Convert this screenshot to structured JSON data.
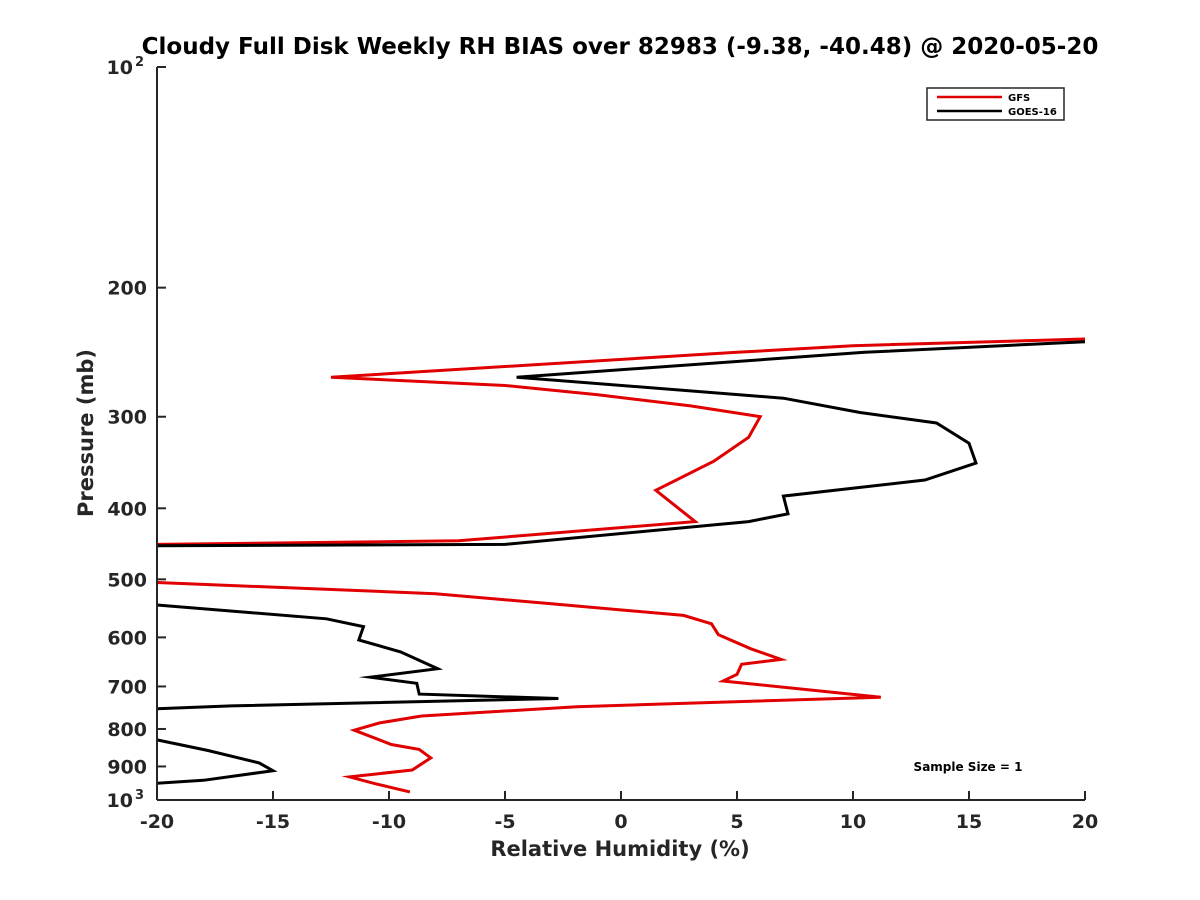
{
  "chart_data": {
    "type": "line",
    "title": "Cloudy Full Disk Weekly RH BIAS over 82983 (-9.38, -40.48) @ 2020-05-20",
    "xlabel": "Relative Humidity (%)",
    "ylabel": "Pressure (mb)",
    "xlim": [
      -20,
      20
    ],
    "ylim": [
      100,
      1000
    ],
    "yscale": "log",
    "y_reversed": true,
    "grid": false,
    "legend_position": "top-right",
    "x_ticks": [
      -20,
      -15,
      -10,
      -5,
      0,
      5,
      10,
      15,
      20
    ],
    "x_tick_labels": [
      "-20",
      "-15",
      "-10",
      "-5",
      "0",
      "5",
      "10",
      "15",
      "20"
    ],
    "y_ticks": [
      100,
      200,
      300,
      400,
      500,
      600,
      700,
      800,
      900,
      1000
    ],
    "y_tick_labels": [
      {
        "base": "10",
        "sup": "2"
      },
      {
        "base": "200",
        "sup": ""
      },
      {
        "base": "300",
        "sup": ""
      },
      {
        "base": "400",
        "sup": ""
      },
      {
        "base": "500",
        "sup": ""
      },
      {
        "base": "600",
        "sup": ""
      },
      {
        "base": "700",
        "sup": ""
      },
      {
        "base": "800",
        "sup": ""
      },
      {
        "base": "900",
        "sup": ""
      },
      {
        "base": "10",
        "sup": "3"
      }
    ],
    "series": [
      {
        "name": "GFS",
        "color": "#e00000",
        "segments": [
          [
            [
              20,
              235
            ],
            [
              10,
              240
            ],
            [
              5,
              245
            ],
            [
              -12.5,
              265
            ],
            [
              -5,
              272
            ],
            [
              -1,
              280
            ],
            [
              3,
              290
            ],
            [
              6,
              300
            ],
            [
              5.5,
              320
            ],
            [
              4,
              345
            ],
            [
              1.5,
              378
            ],
            [
              3.2,
              417
            ],
            [
              -7,
              443
            ],
            [
              -20,
              448
            ]
          ],
          [
            [
              -20,
              505
            ],
            [
              -8,
              523
            ],
            [
              -3,
              540
            ],
            [
              2.7,
              560
            ],
            [
              3.9,
              575
            ],
            [
              4.2,
              595
            ],
            [
              5.6,
              622
            ],
            [
              6.9,
              643
            ],
            [
              5.2,
              653
            ],
            [
              5,
              674
            ],
            [
              4.4,
              688
            ],
            [
              11.2,
              724
            ],
            [
              -1.9,
              746
            ],
            [
              -8.6,
              768
            ],
            [
              -10.4,
              785
            ],
            [
              -11.5,
              803
            ],
            [
              -9.9,
              840
            ],
            [
              -8.7,
              853
            ],
            [
              -8.2,
              876
            ],
            [
              -9,
              910
            ],
            [
              -11.7,
              930
            ],
            [
              -10.6,
              950
            ],
            [
              -9.1,
              975
            ]
          ]
        ]
      },
      {
        "name": "GOES-16",
        "color": "#000000",
        "segments": [
          [
            [
              20,
              237
            ],
            [
              10.5,
              245
            ],
            [
              -4.5,
              265
            ],
            [
              7,
              283
            ],
            [
              10.3,
              296
            ],
            [
              13.6,
              306
            ],
            [
              15,
              326
            ],
            [
              15.3,
              347
            ],
            [
              13.1,
              366
            ],
            [
              7,
              385
            ],
            [
              7.2,
              407
            ],
            [
              5.5,
              417
            ],
            [
              -5,
              448
            ],
            [
              -20,
              450
            ]
          ],
          [
            [
              -20,
              542
            ],
            [
              -12.7,
              566
            ],
            [
              -11.1,
              580
            ],
            [
              -11.3,
              605
            ],
            [
              -9.5,
              628
            ],
            [
              -7.9,
              662
            ],
            [
              -10.8,
              680
            ],
            [
              -8.8,
              693
            ],
            [
              -8.7,
              717
            ],
            [
              -2.7,
              727
            ],
            [
              -16.8,
              744
            ],
            [
              -20,
              751
            ]
          ],
          [
            [
              -20,
              828
            ],
            [
              -17.8,
              856
            ],
            [
              -15.6,
              890
            ],
            [
              -15,
              912
            ],
            [
              -18,
              940
            ],
            [
              -20,
              949
            ]
          ]
        ]
      }
    ],
    "annotations": [
      "Sample Size = 1"
    ]
  }
}
